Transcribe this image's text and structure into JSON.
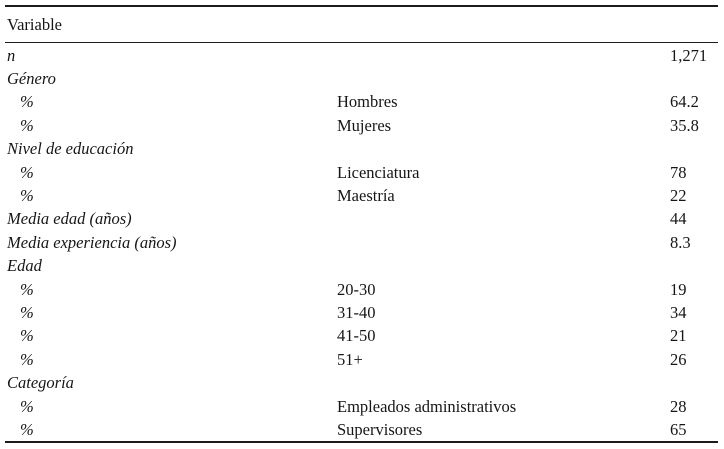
{
  "table": {
    "header": "Variable",
    "rows": [
      {
        "variable": "n",
        "label": "",
        "value": "1,271",
        "indent": false
      },
      {
        "variable": "Género",
        "label": "",
        "value": "",
        "indent": false
      },
      {
        "variable": "%",
        "label": "Hombres",
        "value": "64.2",
        "indent": true
      },
      {
        "variable": "%",
        "label": "Mujeres",
        "value": "35.8",
        "indent": true
      },
      {
        "variable": "Nivel de educación",
        "label": "",
        "value": "",
        "indent": false
      },
      {
        "variable": "%",
        "label": "Licenciatura",
        "value": "78",
        "indent": true
      },
      {
        "variable": "%",
        "label": "Maestría",
        "value": "22",
        "indent": true
      },
      {
        "variable": "Media edad (años)",
        "label": "",
        "value": "44",
        "indent": false
      },
      {
        "variable": "Media experiencia (años)",
        "label": "",
        "value": "8.3",
        "indent": false
      },
      {
        "variable": "Edad",
        "label": "",
        "value": "",
        "indent": false
      },
      {
        "variable": "%",
        "label": "20-30",
        "value": "19",
        "indent": true
      },
      {
        "variable": "%",
        "label": "31-40",
        "value": "34",
        "indent": true
      },
      {
        "variable": "%",
        "label": "41-50",
        "value": "21",
        "indent": true
      },
      {
        "variable": "%",
        "label": "51+",
        "value": "26",
        "indent": true
      },
      {
        "variable": "Categoría",
        "label": "",
        "value": "",
        "indent": false
      },
      {
        "variable": "%",
        "label": "Empleados administrativos",
        "value": "28",
        "indent": true
      },
      {
        "variable": "%",
        "label": "Supervisores",
        "value": "65",
        "indent": true
      }
    ]
  },
  "colors": {
    "background": "#ffffff",
    "text": "#161616",
    "rule": "#1c1c1c"
  }
}
